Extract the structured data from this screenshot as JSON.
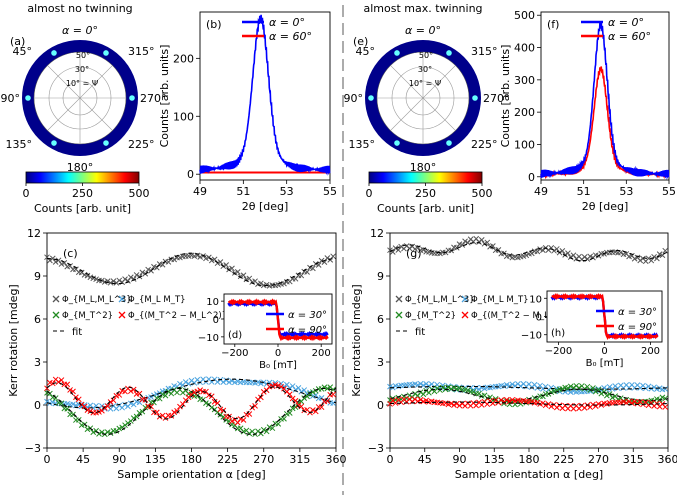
{
  "panels_top": {
    "a": {
      "label": "(a)",
      "title": "almost no twinning",
      "alpha_label": "α = 0°",
      "angles": [
        "45°",
        "315°",
        "90°",
        "270°",
        "135°",
        "225°",
        "180°"
      ],
      "ring_labels": [
        "50°",
        "30°",
        "10° = Ψ"
      ]
    },
    "e": {
      "label": "(e)",
      "title": "almost max. twinning",
      "alpha_label": "α = 0°",
      "angles": [
        "45°",
        "315°",
        "90°",
        "270°",
        "135°",
        "225°",
        "180°"
      ],
      "ring_labels": [
        "50°",
        "30°",
        "10° = Ψ"
      ]
    },
    "colorbar": {
      "ticks": [
        "0",
        "250",
        "500"
      ],
      "label": "Counts [arb. unit]",
      "colors": [
        "#00007f",
        "#0000ff",
        "#007fff",
        "#00ffff",
        "#7fff7f",
        "#ffff00",
        "#ff7f00",
        "#ff0000",
        "#7f0000"
      ]
    }
  },
  "chart_data": [
    {
      "id": "b",
      "type": "line",
      "label": "(b)",
      "xlabel": "2θ [deg]",
      "ylabel": "Counts [arb. units]",
      "xlim": [
        49,
        55
      ],
      "ylim": [
        -10,
        280
      ],
      "xticks": [
        49,
        51,
        53,
        55
      ],
      "yticks": [
        0,
        100,
        200
      ],
      "legend": [
        "α = 0°",
        "α = 60°"
      ],
      "series": [
        {
          "name": "α = 0°",
          "color": "#0000ff",
          "peak": 265,
          "center": 51.8,
          "width": 0.35
        },
        {
          "name": "α = 60°",
          "color": "#ff0000",
          "peak": 0,
          "center": 51.8,
          "width": 0.35
        }
      ]
    },
    {
      "id": "f",
      "type": "line",
      "label": "(f)",
      "xlabel": "2θ [deg]",
      "ylabel": "Counts [arb. units]",
      "xlim": [
        49,
        55
      ],
      "ylim": [
        -10,
        510
      ],
      "xticks": [
        49,
        51,
        53,
        55
      ],
      "yticks": [
        0,
        100,
        200,
        300,
        400,
        500
      ],
      "legend": [
        "α = 0°",
        "α = 60°"
      ],
      "series": [
        {
          "name": "α = 0°",
          "color": "#0000ff",
          "peak": 465,
          "center": 51.8,
          "width": 0.3
        },
        {
          "name": "α = 60°",
          "color": "#ff0000",
          "peak": 330,
          "center": 51.8,
          "width": 0.3
        }
      ]
    },
    {
      "id": "c",
      "type": "scatter",
      "label": "(c)",
      "xlabel": "Sample orientation α [deg]",
      "ylabel": "Kerr rotation [mdeg]",
      "xlim": [
        0,
        360
      ],
      "ylim": [
        -3,
        12
      ],
      "xticks": [
        0,
        45,
        90,
        135,
        180,
        225,
        270,
        315,
        360
      ],
      "yticks": [
        -3,
        0,
        3,
        6,
        9,
        12
      ],
      "legend": [
        "Φ_{M_L,M_L^3}",
        "Φ_{M_L M_T}",
        "Φ_{M_T^2}",
        "Φ_{(M_T^2 − M_L^2)}",
        "fit"
      ],
      "series": [
        {
          "name": "Φ_{M_L,M_L^3}",
          "color": "#555555",
          "offset": 9.4,
          "a1": 0.2,
          "p1": 70,
          "a2": 1.0,
          "p2": -45,
          "a3": 0,
          "p3": 0
        },
        {
          "name": "Φ_{M_L M_T}",
          "color": "#4aa3df",
          "offset": 0.8,
          "a1": 1.0,
          "p1": 140,
          "a2": 0,
          "p2": 0,
          "a3": 0,
          "p3": 0
        },
        {
          "name": "Φ_{M_T^2}",
          "color": "#228b22",
          "offset": -0.45,
          "a1": 0,
          "p1": 0,
          "a2": 1.6,
          "p2": -60,
          "a3": 0,
          "p3": 0
        },
        {
          "name": "Φ_{(M_T^2 − M_L^2)}",
          "color": "#ff0000",
          "offset": 0.25,
          "a1": 0.3,
          "p1": 280,
          "a2": 0,
          "p2": 0,
          "a3": 1.0,
          "p3": 80
        }
      ]
    },
    {
      "id": "g",
      "type": "scatter",
      "label": "(g)",
      "xlabel": "Sample orientation α [deg]",
      "ylabel": "Kerr rotation [mdeg]",
      "xlim": [
        0,
        360
      ],
      "ylim": [
        -3,
        12
      ],
      "xticks": [
        0,
        45,
        90,
        135,
        180,
        225,
        270,
        315,
        360
      ],
      "yticks": [
        -3,
        0,
        3,
        6,
        9,
        12
      ],
      "legend": [
        "Φ_{M_L,M_L^3}",
        "Φ_{M_L M_T}",
        "Φ_{M_T^2}",
        "Φ_{(M_T^2 − M_L^2)}",
        "fit"
      ],
      "series": [
        {
          "name": "Φ_{M_L,M_L^3}",
          "color": "#555555",
          "offset": 10.7,
          "a1": 0.3,
          "p1": 0,
          "a2": 0,
          "p2": 0,
          "a3": 0.35,
          "p3": 0
        },
        {
          "name": "Φ_{M_L M_T}",
          "color": "#4aa3df",
          "offset": 1.2,
          "a1": 0.1,
          "p1": 0,
          "a2": 0,
          "p2": 0,
          "a3": 0,
          "p3": 0
        },
        {
          "name": "Φ_{M_T^2}",
          "color": "#228b22",
          "offset": 0.7,
          "a1": 0,
          "p1": 0,
          "a2": 0.4,
          "p2": -160,
          "a3": 0,
          "p3": 0
        },
        {
          "name": "Φ_{(M_T^2 − M_L^2)}",
          "color": "#ff0000",
          "offset": 0.1,
          "a1": 0.1,
          "p1": 0,
          "a2": 0,
          "p2": 0,
          "a3": 0,
          "p3": 0
        }
      ]
    },
    {
      "id": "d",
      "type": "line",
      "label": "(d)",
      "xlabel": "B₀ [mT]",
      "xlim": [
        -250,
        250
      ],
      "ylim": [
        -14,
        14
      ],
      "xticks": [
        -200,
        0,
        200
      ],
      "yticks": [
        -10,
        0,
        10
      ],
      "legend": [
        "α = 30°",
        "α = 90°"
      ],
      "series": [
        {
          "name": "α = 30°",
          "color": "#0000ff",
          "hi": 8.6,
          "lo": -8.6
        },
        {
          "name": "α = 90°",
          "color": "#ff0000",
          "hi": 9.5,
          "lo": -10.5
        }
      ]
    },
    {
      "id": "h",
      "type": "line",
      "label": "(h)",
      "xlabel": "B₀ [mT]",
      "xlim": [
        -250,
        250
      ],
      "ylim": [
        -14,
        14
      ],
      "xticks": [
        -200,
        0,
        200
      ],
      "yticks": [
        -10,
        0,
        10
      ],
      "legend": [
        "α = 30°",
        "α = 90°"
      ],
      "series": [
        {
          "name": "α = 30°",
          "color": "#0000ff",
          "hi": 10.5,
          "lo": -10.5
        },
        {
          "name": "α = 90°",
          "color": "#ff0000",
          "hi": 11,
          "lo": -11
        }
      ]
    }
  ]
}
